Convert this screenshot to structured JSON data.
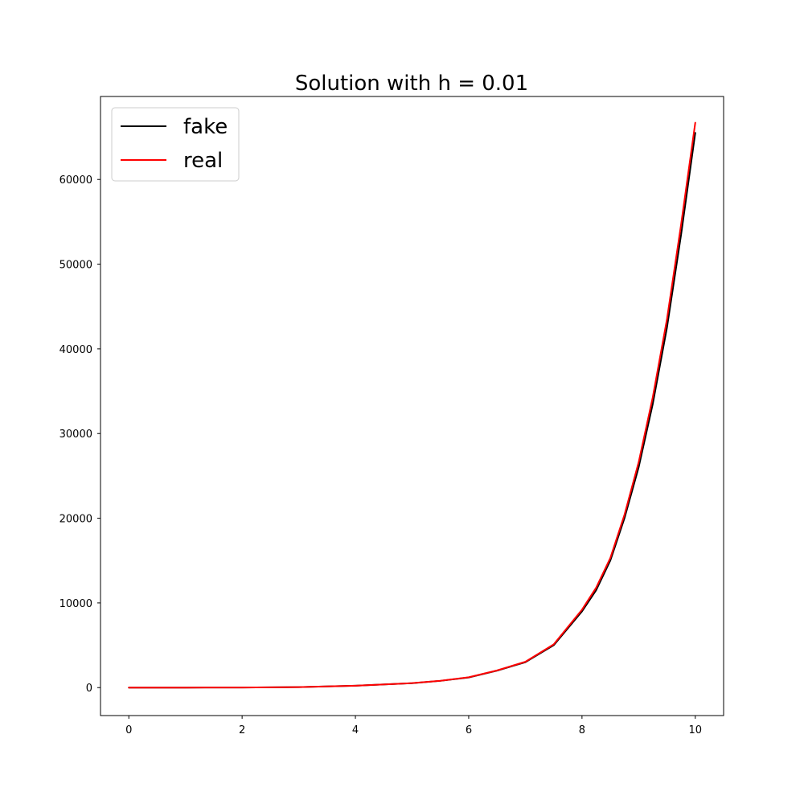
{
  "chart_data": {
    "type": "line",
    "title": "Solution with h = 0.01",
    "xlabel": "",
    "ylabel": "",
    "xlim": [
      -0.5,
      10.5
    ],
    "ylim": [
      -3300,
      69800
    ],
    "xticks": [
      0,
      2,
      4,
      6,
      8,
      10
    ],
    "yticks": [
      0,
      10000,
      20000,
      30000,
      40000,
      50000,
      60000
    ],
    "grid": false,
    "legend_position": "top-left",
    "series": [
      {
        "name": "fake",
        "color": "#000000",
        "x": [
          0,
          1,
          2,
          3,
          4,
          5,
          5.5,
          6,
          6.5,
          7,
          7.5,
          8,
          8.25,
          8.5,
          8.75,
          9,
          9.25,
          9.5,
          9.75,
          10
        ],
        "y": [
          0,
          2,
          16,
          62,
          220,
          520,
          800,
          1200,
          2000,
          3000,
          5000,
          9000,
          11500,
          15000,
          20000,
          26000,
          33500,
          42500,
          53500,
          65500
        ]
      },
      {
        "name": "real",
        "color": "#ff0000",
        "x": [
          0,
          1,
          2,
          3,
          4,
          5,
          5.5,
          6,
          6.5,
          7,
          7.5,
          8,
          8.25,
          8.5,
          8.75,
          9,
          9.25,
          9.5,
          9.75,
          10
        ],
        "y": [
          0,
          2,
          16,
          62,
          225,
          530,
          810,
          1220,
          2030,
          3050,
          5100,
          9200,
          11800,
          15300,
          20400,
          26600,
          34300,
          43500,
          54700,
          66700
        ]
      }
    ]
  }
}
